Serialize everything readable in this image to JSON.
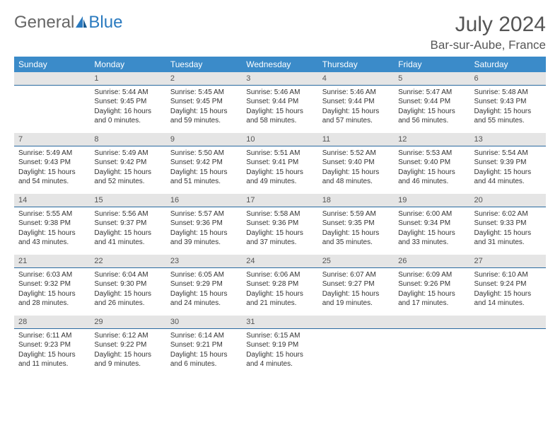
{
  "logo": {
    "text1": "General",
    "text2": "Blue"
  },
  "title": "July 2024",
  "location": "Bar-sur-Aube, France",
  "colors": {
    "header_bg": "#3b8bc9",
    "header_text": "#ffffff",
    "daynum_bg": "#e5e5e5",
    "rule": "#2a6aa0",
    "text": "#333333"
  },
  "weekdays": [
    "Sunday",
    "Monday",
    "Tuesday",
    "Wednesday",
    "Thursday",
    "Friday",
    "Saturday"
  ],
  "weeks": [
    {
      "nums": [
        "",
        "1",
        "2",
        "3",
        "4",
        "5",
        "6"
      ],
      "cells": [
        null,
        {
          "sr": "Sunrise: 5:44 AM",
          "ss": "Sunset: 9:45 PM",
          "dl": "Daylight: 16 hours and 0 minutes."
        },
        {
          "sr": "Sunrise: 5:45 AM",
          "ss": "Sunset: 9:45 PM",
          "dl": "Daylight: 15 hours and 59 minutes."
        },
        {
          "sr": "Sunrise: 5:46 AM",
          "ss": "Sunset: 9:44 PM",
          "dl": "Daylight: 15 hours and 58 minutes."
        },
        {
          "sr": "Sunrise: 5:46 AM",
          "ss": "Sunset: 9:44 PM",
          "dl": "Daylight: 15 hours and 57 minutes."
        },
        {
          "sr": "Sunrise: 5:47 AM",
          "ss": "Sunset: 9:44 PM",
          "dl": "Daylight: 15 hours and 56 minutes."
        },
        {
          "sr": "Sunrise: 5:48 AM",
          "ss": "Sunset: 9:43 PM",
          "dl": "Daylight: 15 hours and 55 minutes."
        }
      ]
    },
    {
      "nums": [
        "7",
        "8",
        "9",
        "10",
        "11",
        "12",
        "13"
      ],
      "cells": [
        {
          "sr": "Sunrise: 5:49 AM",
          "ss": "Sunset: 9:43 PM",
          "dl": "Daylight: 15 hours and 54 minutes."
        },
        {
          "sr": "Sunrise: 5:49 AM",
          "ss": "Sunset: 9:42 PM",
          "dl": "Daylight: 15 hours and 52 minutes."
        },
        {
          "sr": "Sunrise: 5:50 AM",
          "ss": "Sunset: 9:42 PM",
          "dl": "Daylight: 15 hours and 51 minutes."
        },
        {
          "sr": "Sunrise: 5:51 AM",
          "ss": "Sunset: 9:41 PM",
          "dl": "Daylight: 15 hours and 49 minutes."
        },
        {
          "sr": "Sunrise: 5:52 AM",
          "ss": "Sunset: 9:40 PM",
          "dl": "Daylight: 15 hours and 48 minutes."
        },
        {
          "sr": "Sunrise: 5:53 AM",
          "ss": "Sunset: 9:40 PM",
          "dl": "Daylight: 15 hours and 46 minutes."
        },
        {
          "sr": "Sunrise: 5:54 AM",
          "ss": "Sunset: 9:39 PM",
          "dl": "Daylight: 15 hours and 44 minutes."
        }
      ]
    },
    {
      "nums": [
        "14",
        "15",
        "16",
        "17",
        "18",
        "19",
        "20"
      ],
      "cells": [
        {
          "sr": "Sunrise: 5:55 AM",
          "ss": "Sunset: 9:38 PM",
          "dl": "Daylight: 15 hours and 43 minutes."
        },
        {
          "sr": "Sunrise: 5:56 AM",
          "ss": "Sunset: 9:37 PM",
          "dl": "Daylight: 15 hours and 41 minutes."
        },
        {
          "sr": "Sunrise: 5:57 AM",
          "ss": "Sunset: 9:36 PM",
          "dl": "Daylight: 15 hours and 39 minutes."
        },
        {
          "sr": "Sunrise: 5:58 AM",
          "ss": "Sunset: 9:36 PM",
          "dl": "Daylight: 15 hours and 37 minutes."
        },
        {
          "sr": "Sunrise: 5:59 AM",
          "ss": "Sunset: 9:35 PM",
          "dl": "Daylight: 15 hours and 35 minutes."
        },
        {
          "sr": "Sunrise: 6:00 AM",
          "ss": "Sunset: 9:34 PM",
          "dl": "Daylight: 15 hours and 33 minutes."
        },
        {
          "sr": "Sunrise: 6:02 AM",
          "ss": "Sunset: 9:33 PM",
          "dl": "Daylight: 15 hours and 31 minutes."
        }
      ]
    },
    {
      "nums": [
        "21",
        "22",
        "23",
        "24",
        "25",
        "26",
        "27"
      ],
      "cells": [
        {
          "sr": "Sunrise: 6:03 AM",
          "ss": "Sunset: 9:32 PM",
          "dl": "Daylight: 15 hours and 28 minutes."
        },
        {
          "sr": "Sunrise: 6:04 AM",
          "ss": "Sunset: 9:30 PM",
          "dl": "Daylight: 15 hours and 26 minutes."
        },
        {
          "sr": "Sunrise: 6:05 AM",
          "ss": "Sunset: 9:29 PM",
          "dl": "Daylight: 15 hours and 24 minutes."
        },
        {
          "sr": "Sunrise: 6:06 AM",
          "ss": "Sunset: 9:28 PM",
          "dl": "Daylight: 15 hours and 21 minutes."
        },
        {
          "sr": "Sunrise: 6:07 AM",
          "ss": "Sunset: 9:27 PM",
          "dl": "Daylight: 15 hours and 19 minutes."
        },
        {
          "sr": "Sunrise: 6:09 AM",
          "ss": "Sunset: 9:26 PM",
          "dl": "Daylight: 15 hours and 17 minutes."
        },
        {
          "sr": "Sunrise: 6:10 AM",
          "ss": "Sunset: 9:24 PM",
          "dl": "Daylight: 15 hours and 14 minutes."
        }
      ]
    },
    {
      "nums": [
        "28",
        "29",
        "30",
        "31",
        "",
        "",
        ""
      ],
      "cells": [
        {
          "sr": "Sunrise: 6:11 AM",
          "ss": "Sunset: 9:23 PM",
          "dl": "Daylight: 15 hours and 11 minutes."
        },
        {
          "sr": "Sunrise: 6:12 AM",
          "ss": "Sunset: 9:22 PM",
          "dl": "Daylight: 15 hours and 9 minutes."
        },
        {
          "sr": "Sunrise: 6:14 AM",
          "ss": "Sunset: 9:21 PM",
          "dl": "Daylight: 15 hours and 6 minutes."
        },
        {
          "sr": "Sunrise: 6:15 AM",
          "ss": "Sunset: 9:19 PM",
          "dl": "Daylight: 15 hours and 4 minutes."
        },
        null,
        null,
        null
      ]
    }
  ]
}
